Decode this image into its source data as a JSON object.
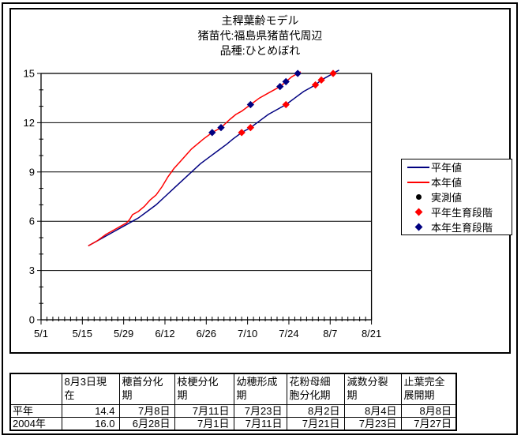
{
  "title": {
    "line1": "主稈葉齢モデル",
    "line2": "猪苗代:福島県猪苗代周辺",
    "line3": "品種:ひとめぼれ"
  },
  "legend": {
    "items": [
      {
        "id": "heinen-line",
        "label": "平年値",
        "marker": "line",
        "color": "#000080"
      },
      {
        "id": "honen-line",
        "label": "本年値",
        "marker": "line",
        "color": "#ff0000"
      },
      {
        "id": "jissoku",
        "label": "実測値",
        "marker": "dot",
        "color": "#000000"
      },
      {
        "id": "heinen-stage",
        "label": "平年生育段階",
        "marker": "diamond",
        "color": "#ff0000"
      },
      {
        "id": "honen-stage",
        "label": "本年生育段階",
        "marker": "diamond",
        "color": "#000080"
      }
    ]
  },
  "chart_data": {
    "type": "line",
    "title": "主稈葉齢モデル 猪苗代:福島県猪苗代周辺 品種:ひとめぼれ",
    "x_axis": {
      "unit": "date (month/day)",
      "start": "5/1",
      "end": "8/21",
      "tick_labels": [
        "5/1",
        "5/15",
        "5/29",
        "6/12",
        "6/26",
        "7/10",
        "7/24",
        "8/7",
        "8/21"
      ],
      "tick_days": [
        0,
        14,
        28,
        42,
        56,
        70,
        84,
        98,
        112
      ],
      "minor_step_days": 2,
      "range_days": [
        0,
        112
      ]
    },
    "y_axis": {
      "ticks": [
        0,
        3,
        6,
        9,
        12,
        15
      ],
      "minor_step": 1,
      "range": [
        0,
        15
      ]
    },
    "grid": "horizontal-major",
    "legend_position": "right",
    "series": [
      {
        "name": "平年値",
        "color": "#000080",
        "points": [
          [
            16,
            4.5
          ],
          [
            20,
            4.9
          ],
          [
            24,
            5.3
          ],
          [
            28,
            5.7
          ],
          [
            31,
            6.0
          ],
          [
            33,
            6.2
          ],
          [
            36,
            6.6
          ],
          [
            39,
            7.0
          ],
          [
            42,
            7.5
          ],
          [
            45,
            8.0
          ],
          [
            48,
            8.5
          ],
          [
            51,
            9.0
          ],
          [
            54,
            9.5
          ],
          [
            57,
            9.9
          ],
          [
            60,
            10.3
          ],
          [
            63,
            10.7
          ],
          [
            65,
            11.0
          ],
          [
            68,
            11.4
          ],
          [
            71,
            11.7
          ],
          [
            74,
            12.1
          ],
          [
            77,
            12.5
          ],
          [
            80,
            12.8
          ],
          [
            83,
            13.1
          ],
          [
            86,
            13.5
          ],
          [
            89,
            13.9
          ],
          [
            91,
            14.1
          ],
          [
            93,
            14.3
          ],
          [
            95,
            14.6
          ],
          [
            97,
            14.8
          ],
          [
            99,
            15.0
          ],
          [
            101,
            15.2
          ]
        ]
      },
      {
        "name": "本年値",
        "color": "#ff0000",
        "points": [
          [
            16,
            4.5
          ],
          [
            19,
            4.8
          ],
          [
            22,
            5.2
          ],
          [
            25,
            5.5
          ],
          [
            27,
            5.7
          ],
          [
            29,
            5.9
          ],
          [
            30,
            6.1
          ],
          [
            31,
            6.4
          ],
          [
            33,
            6.6
          ],
          [
            35,
            6.9
          ],
          [
            37,
            7.3
          ],
          [
            39,
            7.6
          ],
          [
            41,
            8.1
          ],
          [
            43,
            8.7
          ],
          [
            45,
            9.2
          ],
          [
            47,
            9.6
          ],
          [
            49,
            10.0
          ],
          [
            51,
            10.4
          ],
          [
            53,
            10.7
          ],
          [
            55,
            11.0
          ],
          [
            58,
            11.4
          ],
          [
            61,
            11.7
          ],
          [
            64,
            12.2
          ],
          [
            66,
            12.5
          ],
          [
            68,
            12.7
          ],
          [
            71,
            13.1
          ],
          [
            74,
            13.5
          ],
          [
            77,
            13.8
          ],
          [
            79,
            14.0
          ],
          [
            81,
            14.2
          ],
          [
            83,
            14.5
          ],
          [
            85,
            14.8
          ],
          [
            87,
            15.0
          ],
          [
            88,
            15.1
          ]
        ]
      }
    ],
    "stage_markers": [
      {
        "name": "平年生育段階",
        "shape": "diamond",
        "color": "#ff0000",
        "on_series": "平年値",
        "points": [
          {
            "date": "7/8",
            "day": 68,
            "value": 11.4
          },
          {
            "date": "7/11",
            "day": 71,
            "value": 11.7
          },
          {
            "date": "7/23",
            "day": 83,
            "value": 13.1
          },
          {
            "date": "8/2",
            "day": 93,
            "value": 14.3
          },
          {
            "date": "8/4",
            "day": 95,
            "value": 14.6
          },
          {
            "date": "8/8",
            "day": 99,
            "value": 15.0
          }
        ]
      },
      {
        "name": "本年生育段階",
        "shape": "diamond",
        "color": "#000080",
        "on_series": "本年値",
        "points": [
          {
            "date": "6/28",
            "day": 58,
            "value": 11.4
          },
          {
            "date": "7/1",
            "day": 61,
            "value": 11.7
          },
          {
            "date": "7/11",
            "day": 71,
            "value": 13.1
          },
          {
            "date": "7/21",
            "day": 81,
            "value": 14.2
          },
          {
            "date": "7/23",
            "day": 83,
            "value": 14.5
          },
          {
            "date": "7/27",
            "day": 87,
            "value": 15.0
          }
        ]
      }
    ],
    "observed_points": []
  },
  "table": {
    "headers": [
      "",
      "8月3日現\n在",
      "穂首分化\n期",
      "枝梗分化\n期",
      "幼穂形成\n期",
      "花粉母細\n胞分化期",
      "減数分裂\n期",
      "止葉完全\n展開期"
    ],
    "rows": [
      {
        "label": "平年",
        "values": [
          "14.4",
          "7月8日",
          "7月11日",
          "7月23日",
          "8月2日",
          "8月4日",
          "8月8日"
        ]
      },
      {
        "label": "2004年",
        "values": [
          "16.0",
          "6月28日",
          "7月1日",
          "7月11日",
          "7月21日",
          "7月23日",
          "7月27日"
        ]
      }
    ]
  }
}
